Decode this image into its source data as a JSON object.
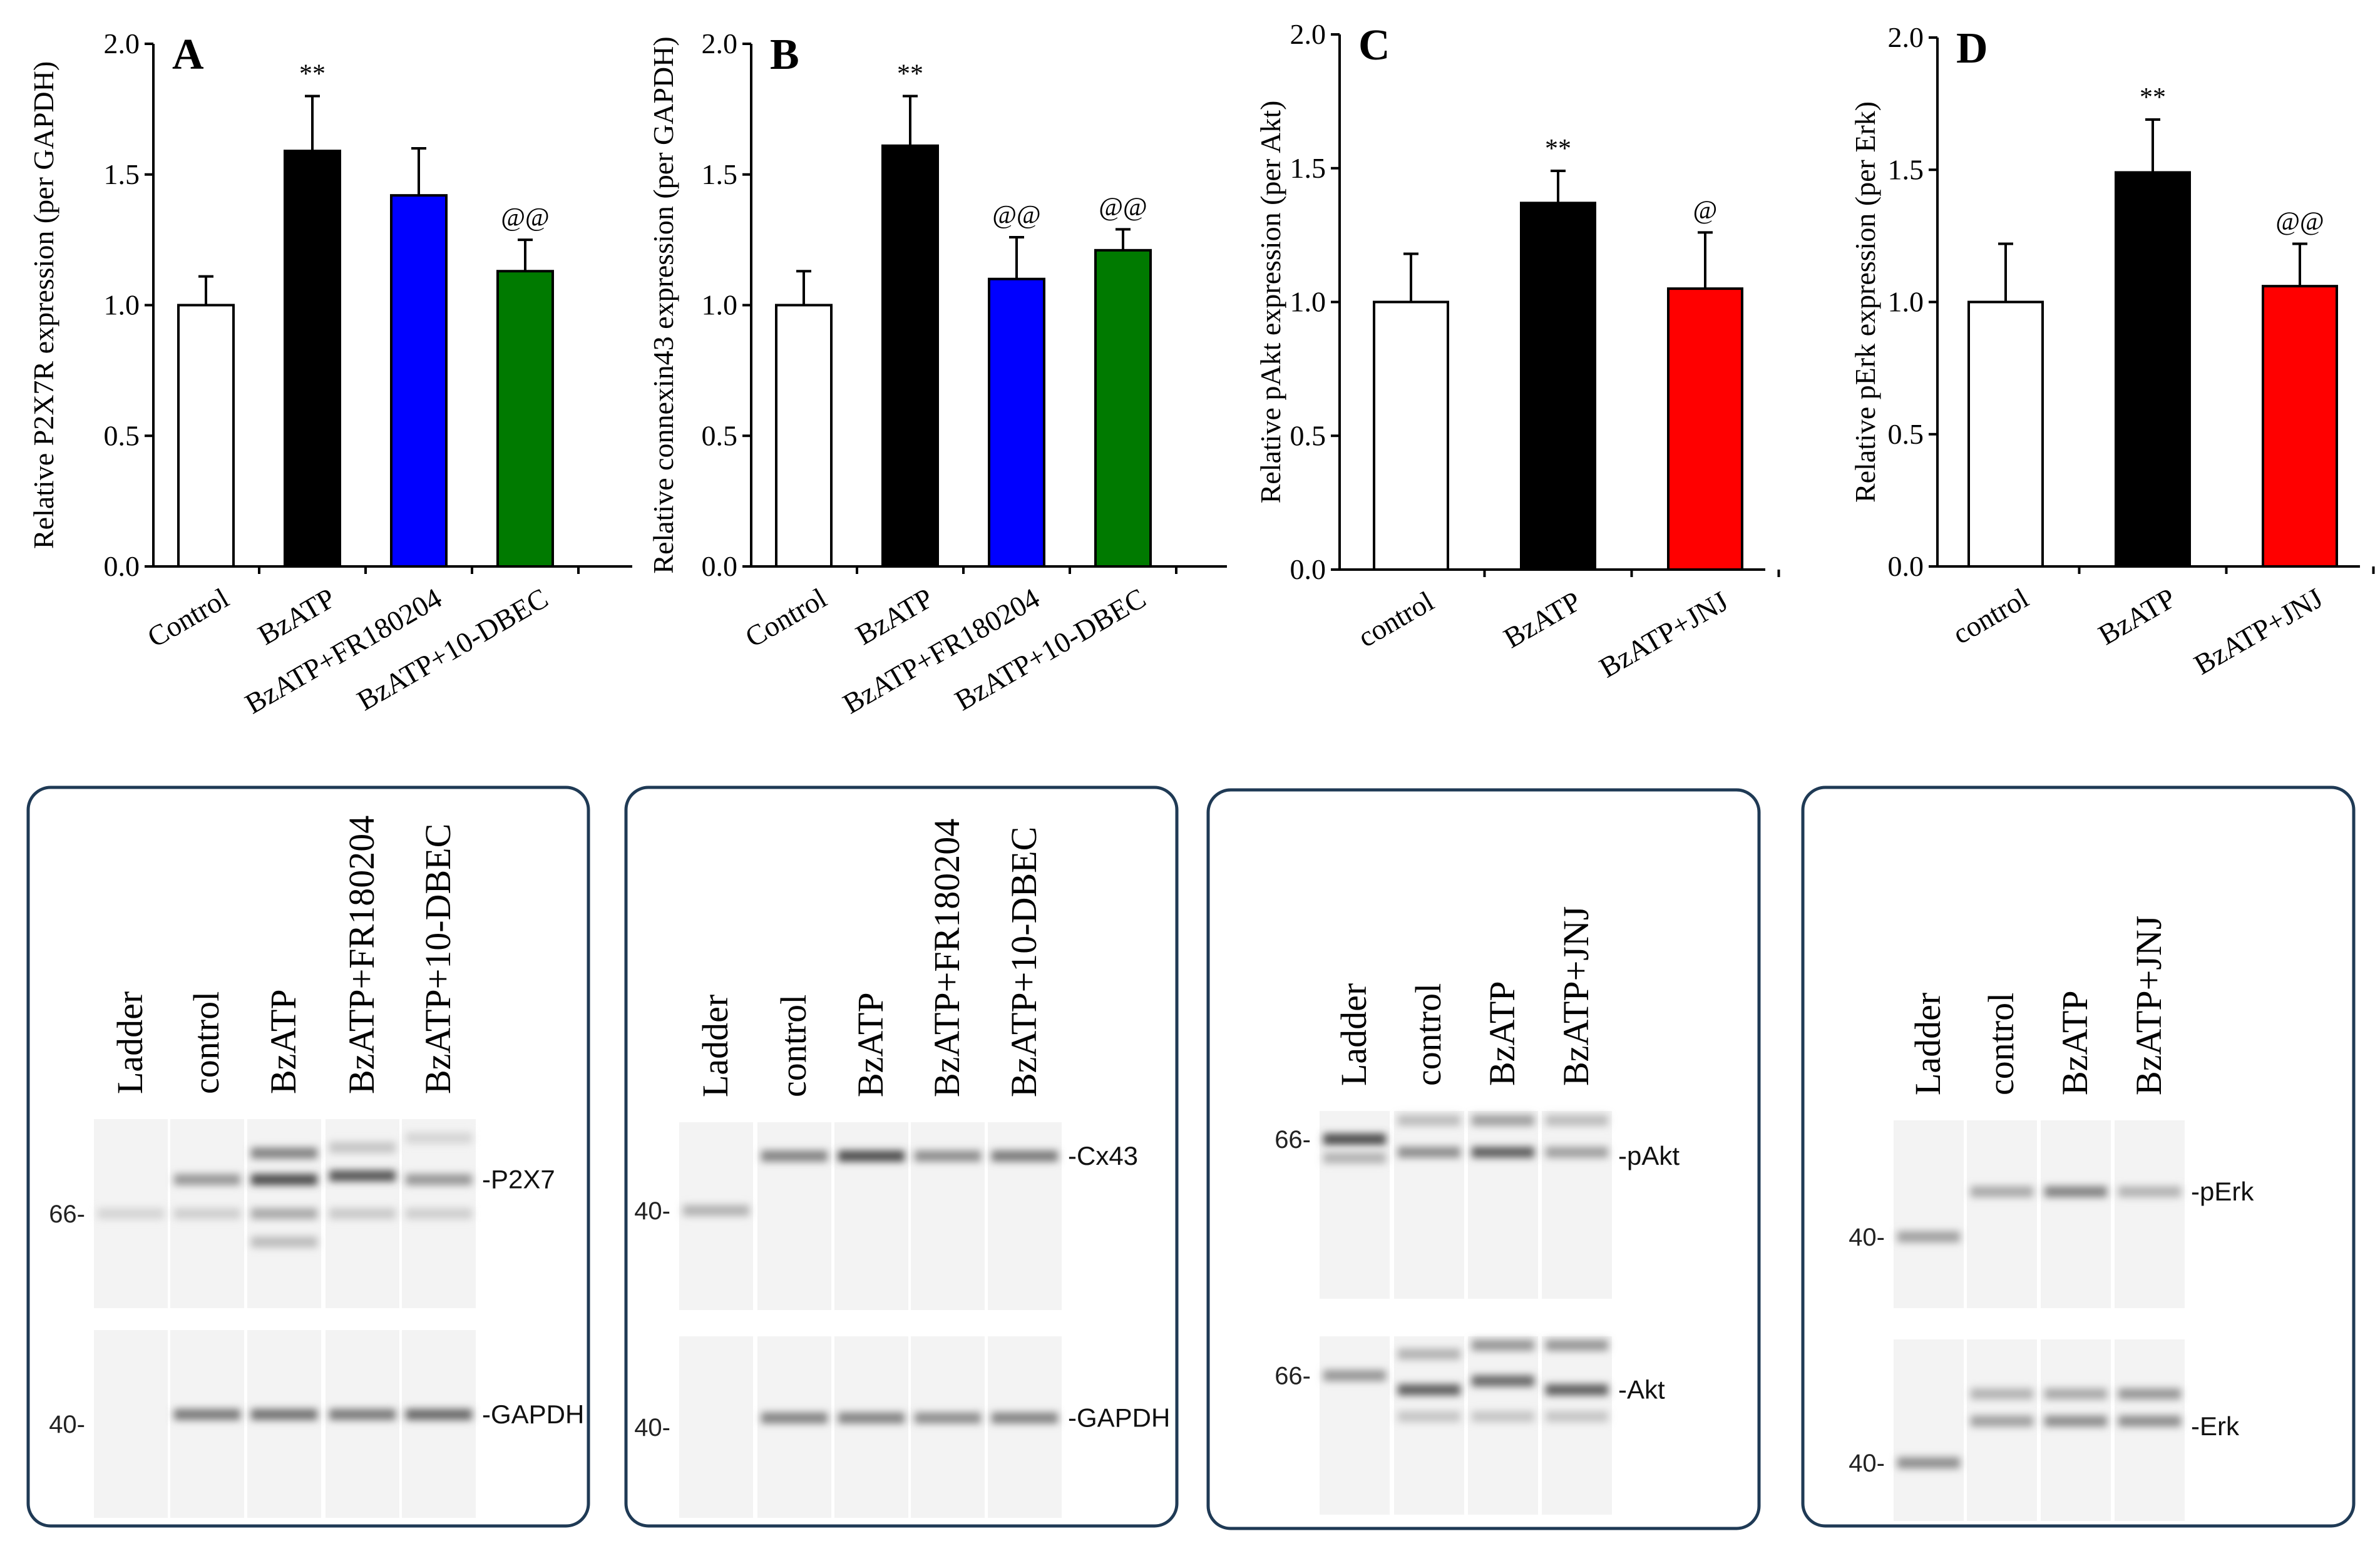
{
  "chart_data": [
    {
      "panel": "A",
      "type": "bar",
      "ylabel": "Relative P2X7R expression (per GAPDH)",
      "ylim": [
        0,
        2.0
      ],
      "yticks": [
        "0.0",
        "0.5",
        "1.0",
        "1.5",
        "2.0"
      ],
      "categories": [
        "Control",
        "BzATP",
        "BzATP+FR180204",
        "BzATP+10-DBEC"
      ],
      "values": [
        1.0,
        1.59,
        1.42,
        1.13
      ],
      "errors": [
        0.11,
        0.21,
        0.18,
        0.12
      ],
      "colors": [
        "#ffffff",
        "#000000",
        "#0000ff",
        "#007a00"
      ],
      "significance": [
        "",
        "**",
        "",
        "@@"
      ]
    },
    {
      "panel": "B",
      "type": "bar",
      "ylabel": "Relative connexin43 expression (per GAPDH)",
      "ylim": [
        0,
        2.0
      ],
      "yticks": [
        "0.0",
        "0.5",
        "1.0",
        "1.5",
        "2.0"
      ],
      "categories": [
        "Control",
        "BzATP",
        "BzATP+FR180204",
        "BzATP+10-DBEC"
      ],
      "values": [
        1.0,
        1.61,
        1.1,
        1.21
      ],
      "errors": [
        0.13,
        0.19,
        0.16,
        0.08
      ],
      "colors": [
        "#ffffff",
        "#000000",
        "#0000ff",
        "#007a00"
      ],
      "significance": [
        "",
        "**",
        "@@",
        "@@"
      ]
    },
    {
      "panel": "C",
      "type": "bar",
      "ylabel": "Relative pAkt expression (per Akt)",
      "ylim": [
        0,
        2.0
      ],
      "yticks": [
        "0.0",
        "0.5",
        "1.0",
        "1.5",
        "2.0"
      ],
      "categories": [
        "control",
        "BzATP",
        "BzATP+JNJ"
      ],
      "values": [
        1.0,
        1.37,
        1.05
      ],
      "errors": [
        0.18,
        0.12,
        0.21
      ],
      "colors": [
        "#ffffff",
        "#000000",
        "#ff0000"
      ],
      "significance": [
        "",
        "**",
        "@"
      ]
    },
    {
      "panel": "D",
      "type": "bar",
      "ylabel": "Relative pErk expression (per Erk)",
      "ylim": [
        0,
        2.0
      ],
      "yticks": [
        "0.0",
        "0.5",
        "1.0",
        "1.5",
        "2.0"
      ],
      "categories": [
        "control",
        "BzATP",
        "BzATP+JNJ"
      ],
      "values": [
        1.0,
        1.49,
        1.06
      ],
      "errors": [
        0.22,
        0.2,
        0.16
      ],
      "colors": [
        "#ffffff",
        "#000000",
        "#ff0000"
      ],
      "significance": [
        "",
        "**",
        "@@"
      ]
    }
  ],
  "blots": [
    {
      "lanes": [
        "Ladder",
        "control",
        "BzATP",
        "BzATP+FR180204",
        "BzATP+10-DBEC"
      ],
      "top_marker": "66",
      "top_protein": "P2X7",
      "bottom_marker": "40",
      "bottom_protein": "GAPDH"
    },
    {
      "lanes": [
        "Ladder",
        "control",
        "BzATP",
        "BzATP+FR180204",
        "BzATP+10-DBEC"
      ],
      "top_marker": "40",
      "top_protein": "Cx43",
      "bottom_marker": "40",
      "bottom_protein": "GAPDH"
    },
    {
      "lanes": [
        "Ladder",
        "control",
        "BzATP",
        "BzATP+JNJ"
      ],
      "top_marker": "66",
      "top_protein": "pAkt",
      "bottom_marker": "66",
      "bottom_protein": "Akt"
    },
    {
      "lanes": [
        "Ladder",
        "control",
        "BzATP",
        "BzATP+JNJ"
      ],
      "top_marker": "40",
      "top_protein": "pErk",
      "bottom_marker": "40",
      "bottom_protein": "Erk"
    }
  ]
}
